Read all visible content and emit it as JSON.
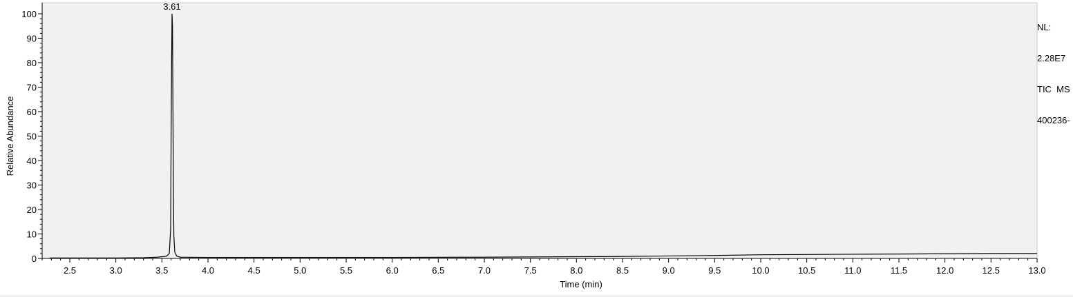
{
  "chart_data": {
    "type": "line",
    "title": "",
    "xlabel": "Time (min)",
    "ylabel": "Relative Abundance",
    "xlim": [
      2.2,
      13.0
    ],
    "ylim": [
      0,
      100
    ],
    "x_ticks": [
      2.5,
      3.0,
      3.5,
      4.0,
      4.5,
      5.0,
      5.5,
      6.0,
      6.5,
      7.0,
      7.5,
      8.0,
      8.5,
      9.0,
      9.5,
      10.0,
      10.5,
      11.0,
      11.5,
      12.0,
      12.5,
      13.0
    ],
    "x_tick_labels": [
      "2.5",
      "3.0",
      "3.5",
      "4.0",
      "4.5",
      "5.0",
      "5.5",
      "6.0",
      "6.5",
      "7.0",
      "7.5",
      "8.0",
      "8.5",
      "9.0",
      "9.5",
      "10.0",
      "10.5",
      "11.0",
      "11.5",
      "12.0",
      "12.5",
      "13.0"
    ],
    "y_ticks": [
      0,
      10,
      20,
      30,
      40,
      50,
      60,
      70,
      80,
      90,
      100
    ],
    "y_tick_labels": [
      "0",
      "10",
      "20",
      "30",
      "40",
      "50",
      "60",
      "70",
      "80",
      "90",
      "100"
    ],
    "grid": false,
    "plot_background": "#f1f1f1",
    "line_color": "#000000",
    "series": [
      {
        "x": [
          2.28,
          2.5,
          3.0,
          3.3,
          3.45,
          3.55,
          3.58,
          3.595,
          3.6,
          3.605,
          3.61,
          3.615,
          3.62,
          3.625,
          3.63,
          3.64,
          3.66,
          3.7,
          4.0,
          5.0,
          6.0,
          6.5,
          7.0,
          7.5,
          8.0,
          8.5,
          9.0,
          9.5,
          10.0,
          10.5,
          11.0,
          11.5,
          12.0,
          12.5,
          13.0
        ],
        "y": [
          0.2,
          0.2,
          0.2,
          0.3,
          0.5,
          0.9,
          2.0,
          12.0,
          50.0,
          78.0,
          100.0,
          95.0,
          60.0,
          26.0,
          9.0,
          2.5,
          1.0,
          0.5,
          0.4,
          0.4,
          0.4,
          0.45,
          0.5,
          0.6,
          0.7,
          0.8,
          1.0,
          1.2,
          1.5,
          1.6,
          1.7,
          1.8,
          1.9,
          2.0,
          2.0
        ]
      }
    ],
    "annotations": [
      {
        "text": "3.61",
        "x": 3.61,
        "y": 100
      }
    ]
  },
  "side_info": {
    "line1": "NL:",
    "line2": "2.28E7",
    "line3": "TIC  MS",
    "line4": "400236-"
  }
}
